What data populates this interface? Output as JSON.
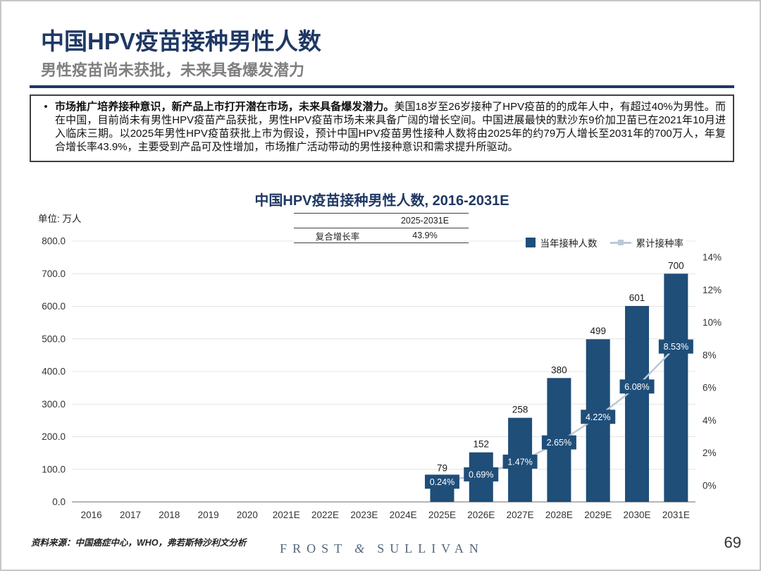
{
  "page": {
    "title": "中国HPV疫苗接种男性人数",
    "subtitle": "男性疫苗尚未获批，未来具备爆发潜力",
    "page_number": "69"
  },
  "info_box": {
    "bullet": "•",
    "lead_bold": "市场推广培养接种意识，新产品上市打开潜在市场，未来具备爆发潜力。",
    "body": "美国18岁至26岁接种了HPV疫苗的的成年人中，有超过40%为男性。而在中国，目前尚未有男性HPV疫苗产品获批，男性HPV疫苗市场未来具备广阔的增长空间。中国进展最快的默沙东9价加卫苗已在2021年10月进入临床三期。以2025年男性HPV疫苗获批上市为假设，预计中国HPV疫苗男性接种人数将由2025年的约79万人增长至2031年的700万人，年复合增长率43.9%，主要受到产品可及性增加，市场推广活动带动的男性接种意识和需求提升所驱动。"
  },
  "chart": {
    "title": "中国HPV疫苗接种男性人数, 2016-2031E",
    "unit_label": "单位: 万人",
    "bar_color": "#1F4E79",
    "line_color": "#BCC8D6",
    "growth_table": {
      "header": "2025-2031E",
      "row_label": "复合增长率",
      "row_value": "43.9%"
    },
    "legend": [
      {
        "label": "当年接种人数"
      },
      {
        "label": "累计接种率"
      }
    ]
  },
  "chart_data": {
    "type": "bar",
    "title": "中国HPV疫苗接种男性人数, 2016-2031E",
    "categories": [
      "2016",
      "2017",
      "2018",
      "2019",
      "2020",
      "2021E",
      "2022E",
      "2023E",
      "2024E",
      "2025E",
      "2026E",
      "2027E",
      "2028E",
      "2029E",
      "2030E",
      "2031E"
    ],
    "series": [
      {
        "name": "当年接种人数",
        "type": "bar",
        "axis": "left",
        "values": [
          0,
          0,
          0,
          0,
          0,
          0,
          0,
          0,
          0,
          79,
          152,
          258,
          380,
          499,
          601,
          700
        ]
      },
      {
        "name": "累计接种率",
        "type": "line",
        "axis": "right",
        "values": [
          null,
          null,
          null,
          null,
          null,
          null,
          null,
          null,
          null,
          0.24,
          0.69,
          1.47,
          2.65,
          4.22,
          6.08,
          8.53
        ]
      }
    ],
    "bar_labels": [
      null,
      null,
      null,
      null,
      null,
      null,
      null,
      null,
      null,
      "79",
      "152",
      "258",
      "380",
      "499",
      "601",
      "700"
    ],
    "line_labels": [
      null,
      null,
      null,
      null,
      null,
      null,
      null,
      null,
      null,
      "0.24%",
      "0.69%",
      "1.47%",
      "2.65%",
      "4.22%",
      "6.08%",
      "8.53%"
    ],
    "left_axis": {
      "min": 0,
      "max": 800,
      "step": 100,
      "unit": "万人"
    },
    "right_axis": {
      "min": -1,
      "max": 15,
      "tick_min": 0,
      "tick_max": 14,
      "step": 2,
      "format": "percent"
    },
    "grid": true,
    "legend_position": "top-right",
    "cagr_note": {
      "period": "2025-2031E",
      "label": "复合增长率",
      "value": "43.9%"
    }
  },
  "footer": {
    "source": "资料来源：中国癌症中心，WHO，弗若斯特沙利文分析",
    "brand_left": "FROST",
    "brand_amp": "&",
    "brand_right": "SULLIVAN"
  }
}
